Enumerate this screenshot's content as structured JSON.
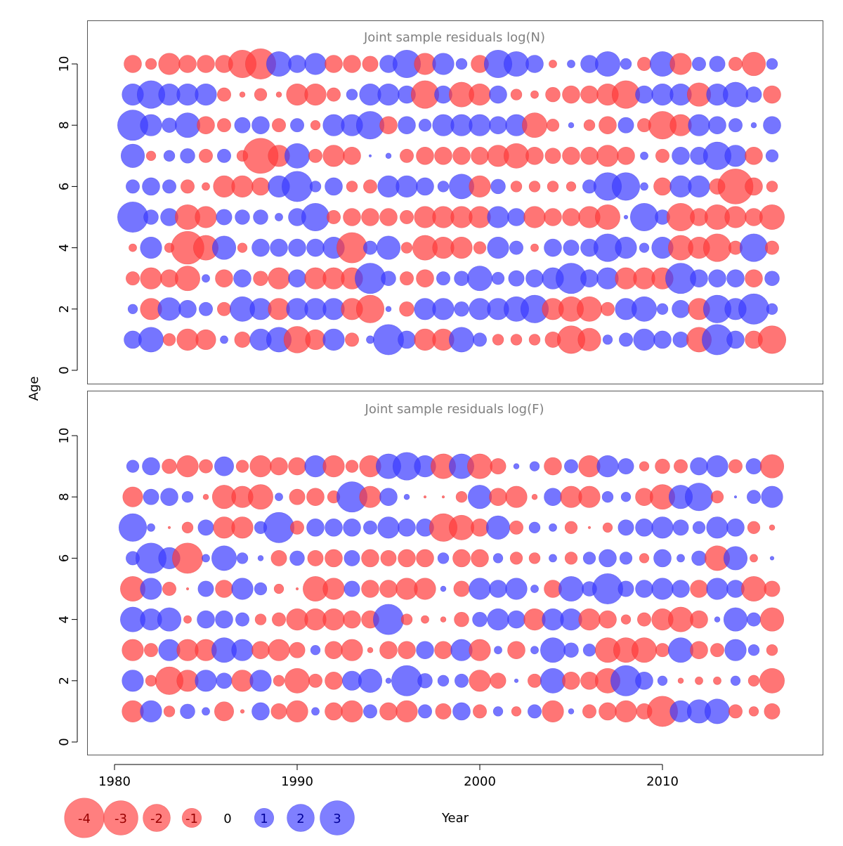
{
  "chart_data": [
    {
      "type": "bubble",
      "title": "Joint sample residuals log(N)",
      "ylabel": "Age",
      "xlabel": "Year",
      "xlim": [
        1978.5,
        2017
      ],
      "ylim": [
        -0.5,
        11
      ],
      "x_ticks": [
        "1980",
        "1990",
        "2000",
        "2010"
      ],
      "y_ticks": [
        "0",
        "2",
        "4",
        "6",
        "8",
        "10"
      ],
      "years": [
        1981,
        1982,
        1983,
        1984,
        1985,
        1986,
        1987,
        1988,
        1989,
        1990,
        1991,
        1992,
        1993,
        1994,
        1995,
        1996,
        1997,
        1998,
        1999,
        2000,
        2001,
        2002,
        2003,
        2004,
        2005,
        2006,
        2007,
        2008,
        2009,
        2010,
        2011,
        2012,
        2013,
        2014,
        2015,
        2016
      ],
      "ages": [
        1,
        2,
        3,
        4,
        5,
        6,
        7,
        8,
        9,
        10
      ],
      "residuals": {
        "1": [
          1.0,
          2.0,
          -0.5,
          -1.5,
          -1.3,
          0.2,
          -0.8,
          1.5,
          2.0,
          -2.3,
          -1.3,
          1.5,
          -0.6,
          0.2,
          3.0,
          1.0,
          -1.5,
          -1.5,
          2.0,
          0.6,
          -0.4,
          -0.4,
          -0.4,
          -0.8,
          -2.5,
          -1.7,
          0.3,
          0.6,
          1.5,
          1.0,
          0.8,
          -2.0,
          3.0,
          1.0,
          -1.0,
          -2.5
        ],
        "2": [
          0.3,
          -1.5,
          1.7,
          1.0,
          0.6,
          -0.6,
          2.0,
          1.5,
          -1.5,
          1.5,
          1.5,
          1.5,
          -1.5,
          -2.5,
          0.1,
          -0.7,
          1.5,
          1.5,
          0.7,
          1.5,
          1.5,
          2.0,
          2.5,
          -1.5,
          -2.0,
          -2.0,
          -0.6,
          1.5,
          2.0,
          0.4,
          1.0,
          -1.5,
          2.5,
          1.5,
          3.0,
          0.4
        ],
        "3": [
          -0.6,
          -1.5,
          -1.0,
          -2.0,
          0.2,
          -1.0,
          1.0,
          -0.7,
          -1.5,
          1.0,
          -1.5,
          -1.5,
          -1.5,
          3.0,
          0.7,
          -0.6,
          -1.0,
          0.6,
          0.7,
          2.0,
          0.5,
          0.8,
          1.0,
          1.5,
          3.0,
          1.0,
          1.5,
          -1.5,
          -1.5,
          -1.5,
          3.0,
          1.0,
          1.0,
          1.0,
          -1.0,
          0.7
        ],
        "4": [
          -0.2,
          1.5,
          -0.3,
          -3.5,
          -2.0,
          1.8,
          -0.3,
          1.0,
          1.0,
          1.0,
          1.0,
          1.5,
          -3.0,
          0.6,
          1.8,
          -0.4,
          -2.0,
          -1.5,
          -1.5,
          -0.5,
          1.5,
          0.6,
          -0.2,
          1.0,
          0.8,
          1.0,
          2.5,
          1.5,
          0.3,
          1.5,
          -2.0,
          -1.5,
          -2.5,
          -0.6,
          2.5,
          -0.6
        ],
        "5": [
          3.0,
          0.7,
          1.0,
          -2.0,
          -1.5,
          0.8,
          0.7,
          0.7,
          0.2,
          1.0,
          2.5,
          -0.6,
          -1.0,
          -1.0,
          -1.0,
          -0.6,
          -1.5,
          -1.5,
          -1.5,
          -1.5,
          1.5,
          1.0,
          -1.5,
          -1.0,
          -1.0,
          -1.5,
          -2.0,
          0.05,
          2.5,
          0.7,
          -2.5,
          -1.0,
          -2.0,
          -1.5,
          -1.0,
          -2.0
        ],
        "6": [
          0.6,
          1.0,
          0.6,
          -0.6,
          -0.2,
          -1.5,
          -1.5,
          -1.0,
          1.5,
          3.0,
          0.4,
          1.0,
          -0.4,
          -0.6,
          1.5,
          1.5,
          1.0,
          0.4,
          2.0,
          -1.5,
          0.7,
          -0.4,
          -0.4,
          -0.4,
          -0.3,
          0.6,
          2.5,
          2.5,
          0.2,
          -1.0,
          1.5,
          1.5,
          -0.8,
          -4.0,
          -1.0,
          -0.4
        ],
        "7": [
          1.8,
          -0.3,
          0.4,
          0.7,
          -0.6,
          0.6,
          -0.4,
          -4.0,
          -1.5,
          2.0,
          -0.6,
          -1.5,
          -1.0,
          0.02,
          0.1,
          -0.6,
          -1.0,
          -1.0,
          -1.0,
          -1.0,
          -1.5,
          -2.0,
          -1.0,
          -0.8,
          -1.0,
          -1.0,
          -1.5,
          -1.0,
          0.2,
          -0.6,
          1.0,
          1.0,
          2.5,
          1.5,
          -1.0,
          0.5
        ],
        "8": [
          3.0,
          1.5,
          0.7,
          2.0,
          -1.0,
          -0.6,
          0.8,
          1.0,
          -0.6,
          0.6,
          -0.3,
          1.5,
          1.5,
          2.5,
          -1.0,
          1.0,
          0.5,
          1.5,
          1.5,
          1.5,
          1.0,
          1.5,
          -2.0,
          -0.5,
          0.1,
          -0.4,
          -1.0,
          0.8,
          -0.6,
          -2.5,
          -1.5,
          1.5,
          1.0,
          0.6,
          0.1,
          1.0
        ],
        "9": [
          1.5,
          2.5,
          1.5,
          1.5,
          1.5,
          -0.6,
          -0.1,
          -0.5,
          -0.1,
          -1.5,
          -1.5,
          -0.6,
          0.4,
          1.5,
          1.5,
          1.0,
          -2.5,
          1.0,
          -2.0,
          -1.5,
          1.0,
          -0.4,
          -0.2,
          -0.7,
          -1.0,
          -1.0,
          -1.5,
          -2.5,
          1.0,
          1.5,
          1.5,
          -1.8,
          1.5,
          2.0,
          0.8,
          -1.0
        ],
        "10": [
          -1.0,
          -0.4,
          -1.5,
          -1.0,
          -1.0,
          -1.0,
          -2.5,
          -3.0,
          2.0,
          1.0,
          1.5,
          -1.0,
          -1.0,
          -0.8,
          1.0,
          2.5,
          -1.5,
          1.5,
          0.4,
          -1.0,
          2.5,
          2.0,
          1.0,
          -0.2,
          0.2,
          1.0,
          2.0,
          0.4,
          -0.6,
          2.0,
          -1.5,
          0.6,
          0.8,
          -0.6,
          -1.8,
          0.4
        ]
      }
    },
    {
      "type": "bubble",
      "title": "Joint sample residuals log(F)",
      "ylabel": "Age",
      "xlabel": "Year",
      "xlim": [
        1978.5,
        2017
      ],
      "ylim": [
        -0.5,
        11
      ],
      "x_ticks": [
        "1980",
        "1990",
        "2000",
        "2010"
      ],
      "y_ticks": [
        "0",
        "2",
        "4",
        "6",
        "8",
        "10"
      ],
      "years": [
        1981,
        1982,
        1983,
        1984,
        1985,
        1986,
        1987,
        1988,
        1989,
        1990,
        1991,
        1992,
        1993,
        1994,
        1995,
        1996,
        1997,
        1998,
        1999,
        2000,
        2001,
        2002,
        2003,
        2004,
        2005,
        2006,
        2007,
        2008,
        2009,
        2010,
        2011,
        2012,
        2013,
        2014,
        2015,
        2016
      ],
      "ages": [
        1,
        2,
        3,
        4,
        5,
        6,
        7,
        8,
        9
      ],
      "residuals": {
        "1": [
          -1.5,
          1.5,
          -0.4,
          0.7,
          0.2,
          -1.2,
          -0.05,
          1.0,
          -0.8,
          -1.5,
          0.2,
          -1.0,
          -1.5,
          0.6,
          -1.0,
          -1.5,
          0.6,
          -0.8,
          1.0,
          -0.6,
          0.3,
          -0.3,
          0.6,
          -1.5,
          0.1,
          -0.6,
          -1.0,
          -1.5,
          -0.8,
          -3.0,
          1.5,
          1.8,
          2.0,
          -0.6,
          -0.3,
          -0.8
        ],
        "2": [
          1.5,
          -0.4,
          -2.5,
          -1.5,
          1.5,
          0.8,
          -1.5,
          1.5,
          -0.4,
          -2.0,
          -0.6,
          -1.0,
          1.2,
          1.8,
          0.1,
          3.0,
          0.7,
          0.4,
          0.6,
          -1.5,
          -0.8,
          0.05,
          -0.6,
          2.0,
          -1.0,
          -1.0,
          -2.0,
          3.0,
          1.0,
          0.3,
          -0.1,
          -0.2,
          -0.2,
          0.3,
          -0.4,
          -2.0
        ],
        "3": [
          -1.5,
          -0.6,
          1.5,
          -1.5,
          -1.5,
          2.0,
          1.5,
          -1.0,
          -1.5,
          -0.8,
          0.3,
          -1.0,
          -1.5,
          -0.1,
          -1.0,
          -1.0,
          1.0,
          -1.0,
          1.5,
          -1.5,
          0.2,
          -1.0,
          0.2,
          2.0,
          0.7,
          0.5,
          -2.0,
          -2.0,
          -2.0,
          -0.6,
          2.0,
          -1.0,
          -0.6,
          1.5,
          0.4,
          -0.4
        ],
        "4": [
          2.0,
          1.5,
          1.8,
          -0.2,
          1.0,
          1.0,
          0.6,
          -0.4,
          -0.6,
          -1.5,
          -1.5,
          -1.5,
          -1.0,
          -1.0,
          3.0,
          -0.4,
          -0.2,
          -0.1,
          -0.7,
          0.7,
          1.5,
          1.0,
          -1.5,
          1.5,
          1.5,
          -1.5,
          -1.0,
          -0.3,
          -0.6,
          -1.5,
          -2.0,
          -1.0,
          0.1,
          1.8,
          0.6,
          -1.8
        ],
        "5": [
          -2.0,
          1.5,
          -0.6,
          -0.02,
          0.8,
          -1.0,
          1.5,
          0.5,
          -0.3,
          -0.02,
          -2.0,
          -1.5,
          0.8,
          -1.0,
          -1.0,
          -1.5,
          -1.5,
          0.1,
          -0.8,
          1.5,
          1.0,
          1.5,
          0.2,
          -1.0,
          2.0,
          0.7,
          3.0,
          0.8,
          1.0,
          1.5,
          1.0,
          -1.0,
          1.5,
          1.0,
          -2.0,
          -0.8
        ],
        "6": [
          0.6,
          3.0,
          1.5,
          -3.0,
          0.2,
          2.0,
          0.4,
          0.1,
          -0.8,
          0.7,
          -0.8,
          -1.0,
          0.8,
          -1.0,
          -0.8,
          -1.0,
          -1.0,
          0.4,
          -1.0,
          -1.0,
          0.3,
          -0.5,
          -0.4,
          0.2,
          -0.5,
          0.5,
          1.0,
          0.5,
          -0.3,
          1.0,
          0.2,
          0.7,
          -2.0,
          1.8,
          -0.2,
          0.05
        ],
        "7": [
          2.5,
          0.2,
          -0.02,
          -0.4,
          0.8,
          -1.5,
          -1.5,
          0.5,
          3.0,
          -0.6,
          1.0,
          1.0,
          1.0,
          0.6,
          1.5,
          1.0,
          1.0,
          -2.5,
          -2.0,
          -1.0,
          1.8,
          -0.6,
          0.4,
          0.2,
          -0.5,
          -0.02,
          -0.3,
          0.8,
          1.0,
          1.5,
          0.8,
          0.5,
          1.5,
          1.0,
          -0.5,
          -0.1
        ],
        "8": [
          -1.3,
          0.8,
          1.0,
          0.4,
          -0.1,
          -1.8,
          -1.5,
          -2.0,
          0.2,
          -0.8,
          -1.0,
          -0.5,
          3.0,
          -1.5,
          1.0,
          0.1,
          -0.02,
          -0.02,
          -0.4,
          1.8,
          -1.0,
          -1.5,
          -0.1,
          1.0,
          -1.5,
          -1.5,
          0.4,
          0.3,
          -1.0,
          -2.0,
          1.8,
          2.5,
          -0.5,
          0.02,
          0.6,
          1.5
        ],
        "9": [
          0.5,
          1.0,
          -0.7,
          -1.5,
          -0.6,
          1.2,
          -0.5,
          -1.5,
          -1.0,
          -1.0,
          1.5,
          -1.5,
          -0.5,
          -1.5,
          2.0,
          2.5,
          1.5,
          -2.0,
          2.0,
          -2.0,
          -0.8,
          0.1,
          0.3,
          -1.0,
          0.6,
          -1.5,
          1.5,
          0.8,
          -0.3,
          -0.7,
          -0.6,
          1.0,
          1.5,
          -0.6,
          0.8,
          -1.8
        ]
      }
    }
  ],
  "x_axis": {
    "title": "Year",
    "ticks": [
      "1980",
      "1990",
      "2000",
      "2010"
    ]
  },
  "y_axis_title": "Age",
  "legend": {
    "items": [
      {
        "label": "-4",
        "value": -4
      },
      {
        "label": "-3",
        "value": -3
      },
      {
        "label": "-2",
        "value": -2
      },
      {
        "label": "-1",
        "value": -1
      },
      {
        "label": "0",
        "value": 0
      },
      {
        "label": "1",
        "value": 1
      },
      {
        "label": "2",
        "value": 2
      },
      {
        "label": "3",
        "value": 3
      }
    ]
  },
  "colors": {
    "negative": "#ff3b3b",
    "positive": "#3b3bff",
    "negative_text": "#990000",
    "positive_text": "#000099",
    "title_text": "#808080"
  }
}
